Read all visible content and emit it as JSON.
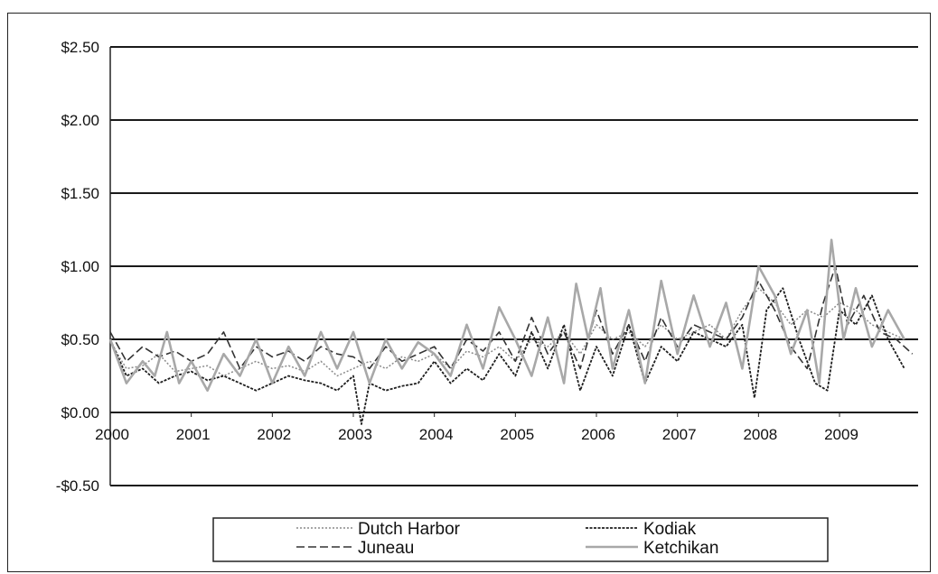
{
  "chart_data": {
    "type": "line",
    "title": "",
    "xlabel": "",
    "ylabel": "",
    "xlim": [
      2000,
      2009.97
    ],
    "ylim": [
      -0.5,
      2.5
    ],
    "grid": "horizontal major lines",
    "legend_position": "bottom",
    "y_ticks": [
      {
        "value": 2.5,
        "label": "$2.50"
      },
      {
        "value": 2.0,
        "label": "$2.00"
      },
      {
        "value": 1.5,
        "label": "$1.50"
      },
      {
        "value": 1.0,
        "label": "$1.00"
      },
      {
        "value": 0.5,
        "label": "$0.50"
      },
      {
        "value": 0.0,
        "label": "$0.00"
      },
      {
        "value": -0.5,
        "label": "-$0.50"
      }
    ],
    "x_ticks": [
      {
        "value": 2000,
        "label": "2000"
      },
      {
        "value": 2001,
        "label": "2001"
      },
      {
        "value": 2002,
        "label": "2002"
      },
      {
        "value": 2003,
        "label": "2003"
      },
      {
        "value": 2004,
        "label": "2004"
      },
      {
        "value": 2005,
        "label": "2005"
      },
      {
        "value": 2006,
        "label": "2006"
      },
      {
        "value": 2007,
        "label": "2007"
      },
      {
        "value": 2008,
        "label": "2008"
      },
      {
        "value": 2009,
        "label": "2009"
      }
    ],
    "series": [
      {
        "name": "Dutch Harbor",
        "color": "#8a8a8a",
        "dash": "2,2",
        "width": 1.5,
        "x": [
          2000.0,
          2000.2,
          2000.4,
          2000.6,
          2000.8,
          2001.0,
          2001.2,
          2001.4,
          2001.6,
          2001.8,
          2002.0,
          2002.2,
          2002.4,
          2002.6,
          2002.8,
          2003.0,
          2003.2,
          2003.4,
          2003.6,
          2003.8,
          2004.0,
          2004.2,
          2004.4,
          2004.6,
          2004.8,
          2005.0,
          2005.2,
          2005.4,
          2005.6,
          2005.8,
          2006.0,
          2006.2,
          2006.4,
          2006.6,
          2006.8,
          2007.0,
          2007.2,
          2007.4,
          2007.6,
          2007.8,
          2008.0,
          2008.2,
          2008.4,
          2008.6,
          2008.8,
          2009.0,
          2009.2,
          2009.4,
          2009.6,
          2009.8
        ],
        "y": [
          0.48,
          0.3,
          0.32,
          0.4,
          0.28,
          0.3,
          0.32,
          0.25,
          0.3,
          0.35,
          0.3,
          0.32,
          0.28,
          0.35,
          0.25,
          0.3,
          0.35,
          0.3,
          0.38,
          0.35,
          0.4,
          0.3,
          0.42,
          0.38,
          0.45,
          0.35,
          0.5,
          0.45,
          0.55,
          0.4,
          0.6,
          0.5,
          0.55,
          0.45,
          0.6,
          0.5,
          0.55,
          0.6,
          0.5,
          0.7,
          0.85,
          0.75,
          0.6,
          0.7,
          0.65,
          0.75,
          0.7,
          0.6,
          0.55,
          0.5
        ]
      },
      {
        "name": "Kodiak",
        "color": "#1e1e1e",
        "dash": "3,1.5",
        "width": 1.8,
        "x": [
          2000.0,
          2000.2,
          2000.4,
          2000.6,
          2000.8,
          2001.0,
          2001.2,
          2001.4,
          2001.6,
          2001.8,
          2002.0,
          2002.2,
          2002.4,
          2002.6,
          2002.8,
          2003.0,
          2003.1,
          2003.2,
          2003.4,
          2003.6,
          2003.8,
          2004.0,
          2004.2,
          2004.4,
          2004.6,
          2004.8,
          2005.0,
          2005.2,
          2005.4,
          2005.6,
          2005.8,
          2006.0,
          2006.2,
          2006.4,
          2006.6,
          2006.8,
          2007.0,
          2007.2,
          2007.4,
          2007.6,
          2007.8,
          2007.95,
          2008.1,
          2008.3,
          2008.5,
          2008.7,
          2008.85,
          2009.0,
          2009.2,
          2009.4,
          2009.6,
          2009.8
        ],
        "y": [
          0.5,
          0.25,
          0.3,
          0.2,
          0.25,
          0.28,
          0.22,
          0.25,
          0.2,
          0.15,
          0.2,
          0.25,
          0.22,
          0.2,
          0.15,
          0.25,
          -0.08,
          0.2,
          0.15,
          0.18,
          0.2,
          0.35,
          0.2,
          0.3,
          0.22,
          0.4,
          0.25,
          0.55,
          0.3,
          0.6,
          0.15,
          0.45,
          0.25,
          0.6,
          0.2,
          0.45,
          0.35,
          0.55,
          0.5,
          0.45,
          0.6,
          0.1,
          0.7,
          0.85,
          0.5,
          0.2,
          0.15,
          0.7,
          0.6,
          0.8,
          0.5,
          0.3
        ]
      },
      {
        "name": "Juneau",
        "color": "#333333",
        "dash": "9,4",
        "width": 1.6,
        "x": [
          2000.0,
          2000.2,
          2000.4,
          2000.6,
          2000.8,
          2001.0,
          2001.2,
          2001.4,
          2001.6,
          2001.8,
          2002.0,
          2002.2,
          2002.4,
          2002.6,
          2002.8,
          2003.0,
          2003.2,
          2003.4,
          2003.6,
          2003.8,
          2004.0,
          2004.2,
          2004.4,
          2004.6,
          2004.8,
          2005.0,
          2005.2,
          2005.4,
          2005.6,
          2005.8,
          2006.0,
          2006.2,
          2006.4,
          2006.6,
          2006.8,
          2007.0,
          2007.2,
          2007.4,
          2007.6,
          2007.8,
          2008.0,
          2008.2,
          2008.4,
          2008.6,
          2008.8,
          2008.95,
          2009.1,
          2009.3,
          2009.5,
          2009.7,
          2009.9
        ],
        "y": [
          0.55,
          0.35,
          0.45,
          0.38,
          0.42,
          0.35,
          0.4,
          0.55,
          0.3,
          0.45,
          0.38,
          0.42,
          0.35,
          0.45,
          0.4,
          0.38,
          0.3,
          0.45,
          0.35,
          0.4,
          0.45,
          0.3,
          0.5,
          0.42,
          0.55,
          0.35,
          0.65,
          0.4,
          0.55,
          0.3,
          0.7,
          0.4,
          0.6,
          0.35,
          0.65,
          0.45,
          0.6,
          0.55,
          0.5,
          0.65,
          0.9,
          0.7,
          0.45,
          0.3,
          0.75,
          1.0,
          0.6,
          0.8,
          0.55,
          0.5,
          0.4
        ]
      },
      {
        "name": "Ketchikan",
        "color": "#a8a8a8",
        "dash": "",
        "width": 2.6,
        "x": [
          2000.0,
          2000.2,
          2000.4,
          2000.55,
          2000.7,
          2000.85,
          2001.0,
          2001.2,
          2001.4,
          2001.6,
          2001.8,
          2002.0,
          2002.2,
          2002.4,
          2002.6,
          2002.8,
          2003.0,
          2003.2,
          2003.4,
          2003.6,
          2003.8,
          2004.0,
          2004.2,
          2004.4,
          2004.6,
          2004.8,
          2005.0,
          2005.2,
          2005.4,
          2005.6,
          2005.75,
          2005.9,
          2006.05,
          2006.2,
          2006.4,
          2006.6,
          2006.8,
          2007.0,
          2007.2,
          2007.4,
          2007.6,
          2007.8,
          2008.0,
          2008.2,
          2008.4,
          2008.6,
          2008.75,
          2008.9,
          2009.05,
          2009.2,
          2009.4,
          2009.6,
          2009.8
        ],
        "y": [
          0.5,
          0.2,
          0.35,
          0.25,
          0.55,
          0.2,
          0.35,
          0.15,
          0.4,
          0.25,
          0.5,
          0.2,
          0.45,
          0.25,
          0.55,
          0.3,
          0.55,
          0.2,
          0.5,
          0.3,
          0.48,
          0.4,
          0.25,
          0.6,
          0.3,
          0.72,
          0.5,
          0.25,
          0.65,
          0.2,
          0.88,
          0.5,
          0.85,
          0.3,
          0.7,
          0.2,
          0.9,
          0.4,
          0.8,
          0.45,
          0.75,
          0.3,
          1.0,
          0.8,
          0.4,
          0.7,
          0.2,
          1.18,
          0.5,
          0.85,
          0.45,
          0.7,
          0.5
        ]
      }
    ]
  },
  "legend": {
    "entries": [
      {
        "label": "Dutch Harbor"
      },
      {
        "label": "Kodiak"
      },
      {
        "label": "Juneau"
      },
      {
        "label": "Ketchikan"
      }
    ]
  }
}
